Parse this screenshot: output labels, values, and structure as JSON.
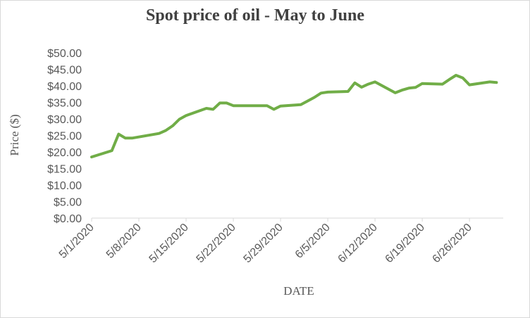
{
  "chart_data": {
    "type": "line",
    "title": "Spot price of oil - May to June",
    "xlabel": "DATE",
    "ylabel": "Price ($)",
    "ylim": [
      0,
      50
    ],
    "yticks": [
      "$0.00",
      "$5.00",
      "$10.00",
      "$15.00",
      "$20.00",
      "$25.00",
      "$30.00",
      "$35.00",
      "$40.00",
      "$45.00",
      "$50.00"
    ],
    "xticks": [
      "5/1/2020",
      "5/8/2020",
      "5/15/2020",
      "5/22/2020",
      "5/29/2020",
      "6/5/2020",
      "6/12/2020",
      "6/19/2020",
      "6/26/2020"
    ],
    "grid": false,
    "legend": "none",
    "series": [
      {
        "color": "#70ad47",
        "points": [
          [
            "5/1/2020",
            18.5
          ],
          [
            "5/4/2020",
            20.4
          ],
          [
            "5/5/2020",
            25.4
          ],
          [
            "5/6/2020",
            24.2
          ],
          [
            "5/7/2020",
            24.2
          ],
          [
            "5/11/2020",
            25.6
          ],
          [
            "5/12/2020",
            26.5
          ],
          [
            "5/13/2020",
            27.9
          ],
          [
            "5/14/2020",
            29.9
          ],
          [
            "5/15/2020",
            31.0
          ],
          [
            "5/18/2020",
            33.2
          ],
          [
            "5/19/2020",
            32.9
          ],
          [
            "5/20/2020",
            34.8
          ],
          [
            "5/21/2020",
            34.8
          ],
          [
            "5/22/2020",
            34.0
          ],
          [
            "5/26/2020",
            34.0
          ],
          [
            "5/27/2020",
            34.0
          ],
          [
            "5/28/2020",
            32.9
          ],
          [
            "5/29/2020",
            33.9
          ],
          [
            "6/1/2020",
            34.3
          ],
          [
            "6/2/2020",
            35.4
          ],
          [
            "6/3/2020",
            36.5
          ],
          [
            "6/4/2020",
            37.8
          ],
          [
            "6/5/2020",
            38.1
          ],
          [
            "6/8/2020",
            38.3
          ],
          [
            "6/9/2020",
            40.9
          ],
          [
            "6/10/2020",
            39.6
          ],
          [
            "6/11/2020",
            40.5
          ],
          [
            "6/12/2020",
            41.2
          ],
          [
            "6/15/2020",
            37.9
          ],
          [
            "6/16/2020",
            38.7
          ],
          [
            "6/17/2020",
            39.3
          ],
          [
            "6/18/2020",
            39.5
          ],
          [
            "6/19/2020",
            40.7
          ],
          [
            "6/22/2020",
            40.5
          ],
          [
            "6/23/2020",
            41.9
          ],
          [
            "6/24/2020",
            43.2
          ],
          [
            "6/25/2020",
            42.4
          ],
          [
            "6/26/2020",
            40.3
          ],
          [
            "6/29/2020",
            41.2
          ],
          [
            "6/30/2020",
            41.0
          ]
        ]
      }
    ]
  }
}
